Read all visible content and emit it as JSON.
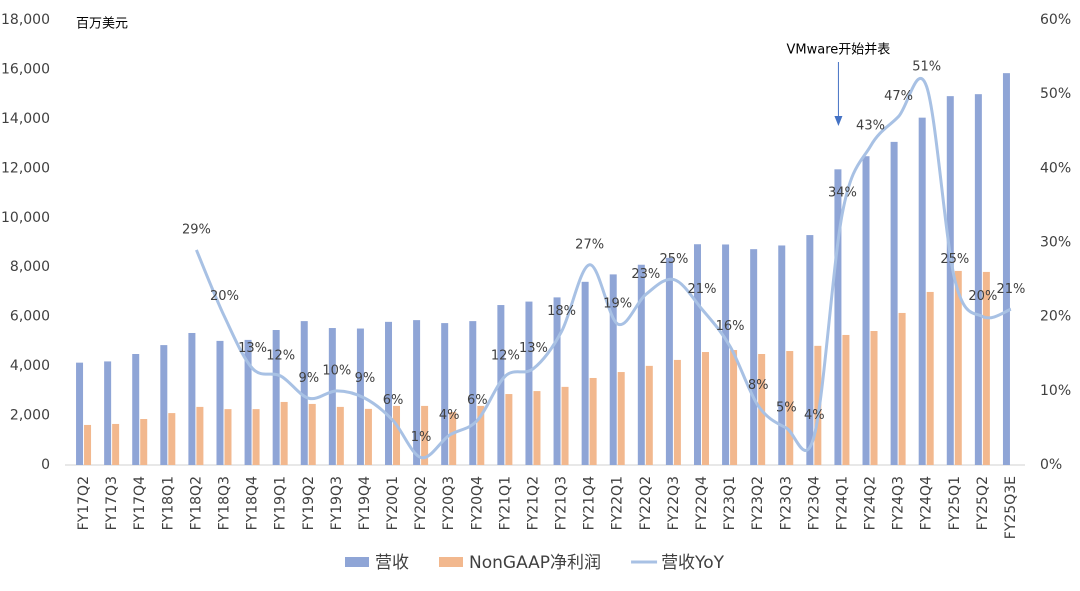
{
  "chart_data": {
    "type": "bar_line",
    "unit_label": "百万美元",
    "annotation": "VMware开始并表",
    "annotation_category": 27,
    "categories": [
      "FY17Q2",
      "FY17Q3",
      "FY17Q4",
      "FY18Q1",
      "FY18Q2",
      "FY18Q3",
      "FY18Q4",
      "FY19Q1",
      "FY19Q2",
      "FY19Q3",
      "FY19Q4",
      "FY20Q1",
      "FY20Q2",
      "FY20Q3",
      "FY20Q4",
      "FY21Q1",
      "FY21Q2",
      "FY21Q3",
      "FY21Q4",
      "FY22Q1",
      "FY22Q2",
      "FY22Q3",
      "FY22Q4",
      "FY23Q1",
      "FY23Q2",
      "FY23Q3",
      "FY23Q4",
      "FY24Q1",
      "FY24Q2",
      "FY24Q3",
      "FY24Q4",
      "FY25Q1",
      "FY25Q2",
      "FY25Q3E"
    ],
    "series": [
      {
        "name": "营收",
        "type": "bar",
        "color": "#8fa5d6",
        "values": [
          4140,
          4190,
          4490,
          4850,
          5340,
          5020,
          5060,
          5460,
          5820,
          5540,
          5520,
          5790,
          5860,
          5740,
          5820,
          6470,
          6610,
          6780,
          7410,
          7710,
          8100,
          8380,
          8930,
          8920,
          8730,
          8880,
          9300,
          11960,
          12490,
          13070,
          14050,
          14920,
          15000,
          15850
        ]
      },
      {
        "name": "NonGAAP净利润",
        "type": "bar",
        "color": "#f2b88e",
        "values": [
          1620,
          1660,
          1860,
          2100,
          2350,
          2260,
          2260,
          2550,
          2470,
          2350,
          2270,
          2390,
          2390,
          2140,
          2390,
          2870,
          2990,
          3160,
          3520,
          3760,
          4010,
          4250,
          4570,
          4650,
          4490,
          4610,
          4820,
          5260,
          5420,
          6150,
          7000,
          7850,
          7810,
          null
        ]
      },
      {
        "name": "营收YoY",
        "type": "line",
        "axis": "y2",
        "color": "#a8c1e4",
        "values": [
          null,
          null,
          null,
          null,
          29,
          20,
          13,
          12,
          9,
          10,
          9,
          6,
          1,
          4,
          6,
          12,
          13,
          18,
          27,
          19,
          23,
          25,
          21,
          16,
          8,
          5,
          4,
          34,
          43,
          47,
          51,
          25,
          20,
          21
        ],
        "value_labels": [
          null,
          null,
          null,
          null,
          "29%",
          "20%",
          "13%",
          "12%",
          "9%",
          "10%",
          "9%",
          "6%",
          "1%",
          "4%",
          "6%",
          "12%",
          "13%",
          "18%",
          "27%",
          "19%",
          "23%",
          "25%",
          "21%",
          "16%",
          "8%",
          "5%",
          "4%",
          "34%",
          "43%",
          "47%",
          "51%",
          "25%",
          "20%",
          "21%"
        ]
      }
    ],
    "ylim": [
      0,
      18000
    ],
    "yticks": [
      0,
      {
        "value": 2000,
        "label": "2,000"
      },
      {
        "value": 4000,
        "label": "4,000"
      },
      {
        "value": 6000,
        "label": "6,000"
      },
      {
        "value": 8000,
        "label": "8,000"
      },
      {
        "value": 10000,
        "label": "10,000"
      },
      {
        "value": 12000,
        "label": "12,000"
      },
      {
        "value": 14000,
        "label": "14,000"
      },
      {
        "value": 16000,
        "label": "16,000"
      },
      {
        "value": 18000,
        "label": "18,000"
      }
    ],
    "y2lim": [
      0,
      60
    ],
    "y2ticks": [
      {
        "value": 0,
        "label": "0%"
      },
      {
        "value": 10,
        "label": "10%"
      },
      {
        "value": 20,
        "label": "20%"
      },
      {
        "value": 30,
        "label": "30%"
      },
      {
        "value": 40,
        "label": "40%"
      },
      {
        "value": 50,
        "label": "50%"
      },
      {
        "value": 60,
        "label": "60%"
      }
    ],
    "legend": "bottom"
  }
}
